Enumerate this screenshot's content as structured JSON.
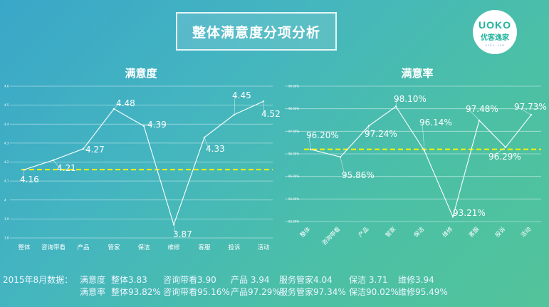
{
  "header": {
    "title": "整体满意度分项分析"
  },
  "logo": {
    "line1": "UOKO",
    "line2": "优客逸家",
    "line3": "uoko.com"
  },
  "chart_data": [
    {
      "type": "line",
      "title": "满意度",
      "categories": [
        "整体",
        "咨询带看",
        "产品",
        "管家",
        "保洁",
        "维修",
        "客服",
        "投诉",
        "活动"
      ],
      "values": [
        4.16,
        4.21,
        4.27,
        4.48,
        4.39,
        3.87,
        4.33,
        4.45,
        4.52
      ],
      "data_labels": [
        "4.16",
        "4.21",
        "4.27",
        "4.48",
        "4.39",
        "3.87",
        "4.33",
        "4.45",
        "4.52"
      ],
      "ylim": [
        3.8,
        4.6
      ],
      "yticks": [
        "4.6",
        "4.5",
        "4.4",
        "4.3",
        "4.2",
        "4.1",
        "4",
        "3.9",
        "3.8"
      ],
      "reference_line": 4.16,
      "grid": true,
      "colors": {
        "line": "#ffffff",
        "reference": "#f3f500"
      }
    },
    {
      "type": "line",
      "title": "满意率",
      "categories": [
        "整体",
        "咨询带看",
        "产品",
        "管家",
        "保洁",
        "维修",
        "客服",
        "投诉",
        "活动"
      ],
      "values": [
        96.2,
        95.86,
        97.24,
        98.1,
        96.14,
        93.21,
        97.48,
        96.29,
        97.73
      ],
      "data_labels": [
        "96.20%",
        "95.86%",
        "97.24%",
        "98.10%",
        "96.14%",
        "93.21%",
        "97.48%",
        "96.29%",
        "97.73%"
      ],
      "ylim": [
        93.0,
        99.0
      ],
      "yticks": [
        "99.00%",
        "98.00%",
        "97.00%",
        "96.00%",
        "95.00%",
        "94.00%",
        "93.00%"
      ],
      "reference_line": 96.2,
      "grid": true,
      "colors": {
        "line": "#ffffff",
        "reference": "#f3f500"
      }
    }
  ],
  "footer": {
    "prefix": "2015年8月数据：",
    "rows": [
      [
        "满意度",
        "整体3.83",
        "咨询带看3.90",
        "产品 3.94",
        "服务管家4.04",
        "保洁 3.71",
        "维修3.94"
      ],
      [
        "满意率",
        "整体93.82%",
        "咨询带看95.16%",
        "产品97.29%",
        "服务管家97.34%",
        "保洁90.02%",
        "维修95.49%"
      ]
    ]
  }
}
